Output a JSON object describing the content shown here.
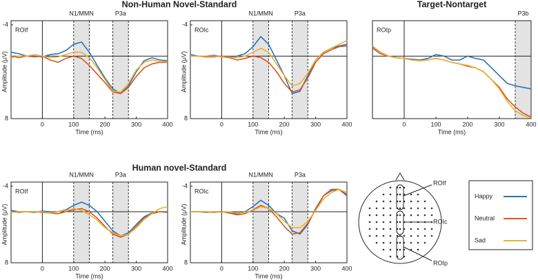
{
  "chart_data": [
    {
      "type": "line",
      "title": "Non-Human Novel-Standard",
      "panel_label": "ROIf",
      "xlabel": "Time (ms)",
      "ylabel": "Amplitude (μV)",
      "x": [
        -100,
        -75,
        -50,
        -25,
        0,
        25,
        50,
        75,
        100,
        125,
        150,
        175,
        200,
        225,
        250,
        275,
        300,
        325,
        350,
        375,
        400
      ],
      "xlim": [
        -100,
        400
      ],
      "xticks": [
        0,
        100,
        200,
        300,
        400
      ],
      "ylim": [
        -4,
        8
      ],
      "yticks": [
        -4,
        8
      ],
      "y_inverted": true,
      "windows": [
        {
          "label": "N1/MMN",
          "start": 100,
          "end": 150
        },
        {
          "label": "P3a",
          "start": 225,
          "end": 275
        }
      ],
      "series": [
        {
          "name": "Happy",
          "color": "#2a72b5",
          "values": [
            -0.5,
            -0.3,
            0,
            0,
            0.1,
            -0.2,
            -0.3,
            -0.7,
            -1.5,
            -1.8,
            -0.5,
            1.2,
            2.8,
            4.2,
            4.8,
            3.8,
            2.0,
            0.6,
            0.2,
            0.5,
            0.6
          ]
        },
        {
          "name": "Neutral",
          "color": "#d9541e",
          "values": [
            0,
            0.2,
            0,
            0.1,
            0,
            0.5,
            0.8,
            0.3,
            0,
            0.3,
            1.2,
            2.3,
            3.4,
            4.6,
            4.8,
            4.0,
            2.6,
            1.5,
            1.0,
            0.8,
            0.8
          ]
        },
        {
          "name": "Sad",
          "color": "#e8b030",
          "values": [
            0.2,
            0,
            0,
            -0.2,
            0,
            0.2,
            0.1,
            -0.2,
            -0.5,
            -0.5,
            0.2,
            1.5,
            3.0,
            4.5,
            4.6,
            3.5,
            1.8,
            0.8,
            0.5,
            0.7,
            0.7
          ]
        }
      ]
    },
    {
      "type": "line",
      "panel_label": "ROIc",
      "xlabel": "Time (ms)",
      "ylabel": "Amplitude (μV)",
      "x": [
        -100,
        -75,
        -50,
        -25,
        0,
        25,
        50,
        75,
        100,
        125,
        150,
        175,
        200,
        225,
        250,
        275,
        300,
        325,
        350,
        375,
        400
      ],
      "xlim": [
        -100,
        400
      ],
      "xticks": [
        0,
        100,
        200,
        300,
        400
      ],
      "ylim": [
        -4,
        8
      ],
      "yticks": [
        -4,
        8
      ],
      "y_inverted": true,
      "windows": [
        {
          "label": "N1/MMN",
          "start": 100,
          "end": 150
        },
        {
          "label": "P3a",
          "start": 225,
          "end": 275
        }
      ],
      "series": [
        {
          "name": "Happy",
          "color": "#2a72b5",
          "values": [
            -0.2,
            0,
            0,
            -0.1,
            0.1,
            0.2,
            0,
            -0.3,
            -1.2,
            -2.5,
            -1.5,
            0.5,
            2.5,
            4.8,
            4.5,
            2.5,
            0.5,
            -0.5,
            -1,
            -1.3,
            -1.5
          ]
        },
        {
          "name": "Neutral",
          "color": "#d9541e",
          "values": [
            0,
            0,
            0.1,
            0.1,
            0,
            0.2,
            0.5,
            0.3,
            0,
            0.2,
            0.8,
            2,
            3.5,
            4.6,
            4.3,
            2.8,
            0.8,
            -0.3,
            -0.8,
            -1.2,
            -1.3
          ]
        },
        {
          "name": "Sad",
          "color": "#e8b030",
          "values": [
            0,
            0,
            0,
            0,
            0.1,
            0.1,
            0.2,
            0,
            -0.5,
            -1,
            -0.5,
            1,
            2.5,
            3.8,
            3.5,
            2.2,
            0.5,
            -0.5,
            -1,
            -1.5,
            -2
          ]
        }
      ]
    },
    {
      "type": "line",
      "title": "Target-Nontarget",
      "panel_label": "ROIp",
      "xlabel": "Time (ms)",
      "x": [
        -100,
        -75,
        -50,
        -25,
        0,
        25,
        50,
        75,
        100,
        125,
        150,
        175,
        200,
        225,
        250,
        275,
        300,
        325,
        350,
        375,
        400
      ],
      "xlim": [
        -100,
        400
      ],
      "xticks": [
        0,
        100,
        200,
        300,
        400
      ],
      "ylim": [
        -4,
        8
      ],
      "y_inverted": true,
      "windows": [
        {
          "label": "P3b",
          "start": 350,
          "end": 400
        }
      ],
      "series": [
        {
          "name": "Happy",
          "color": "#2a72b5",
          "values": [
            -1.2,
            -0.5,
            0,
            0.2,
            0.3,
            0.4,
            0.5,
            0.3,
            -0.2,
            0,
            0.5,
            0.5,
            0,
            0.3,
            0.5,
            1.5,
            2.5,
            3.5,
            3.8,
            4,
            4.2
          ]
        },
        {
          "name": "Neutral",
          "color": "#d9541e",
          "values": [
            -1,
            -0.3,
            0,
            0.2,
            0.3,
            0.5,
            0.6,
            0.5,
            0.3,
            0.5,
            0.8,
            1,
            1.3,
            1.5,
            2,
            3,
            4,
            5.5,
            6.5,
            7.3,
            7.8
          ]
        },
        {
          "name": "Sad",
          "color": "#e8b030",
          "values": [
            -1.3,
            -0.5,
            0,
            0.2,
            0.3,
            0.5,
            0.6,
            0.5,
            0.3,
            0.5,
            0.8,
            1,
            1.2,
            1.5,
            2,
            3,
            4.2,
            5.8,
            7,
            7.6,
            7.9
          ]
        }
      ]
    },
    {
      "type": "line",
      "title": "Human novel-Standard",
      "panel_label": "ROIf",
      "xlabel": "Time (ms)",
      "ylabel": "Amplitude (μV)",
      "x": [
        -100,
        -75,
        -50,
        -25,
        0,
        25,
        50,
        75,
        100,
        125,
        150,
        175,
        200,
        225,
        250,
        275,
        300,
        325,
        350,
        375,
        400
      ],
      "xlim": [
        -100,
        400
      ],
      "xticks": [
        0,
        100,
        200,
        300,
        400
      ],
      "ylim": [
        -4,
        8
      ],
      "yticks": [
        -4,
        8
      ],
      "y_inverted": true,
      "windows": [
        {
          "label": "N1/MMN",
          "start": 100,
          "end": 150
        },
        {
          "label": "P3a",
          "start": 225,
          "end": 275
        }
      ],
      "series": [
        {
          "name": "Happy",
          "color": "#2a72b5",
          "values": [
            -0.2,
            0,
            0,
            0.1,
            -0.1,
            0,
            0,
            -0.3,
            -1,
            -1.5,
            -1,
            0,
            1.5,
            3,
            3.8,
            3.3,
            2,
            0.8,
            0.2,
            0,
            0
          ]
        },
        {
          "name": "Neutral",
          "color": "#d9541e",
          "values": [
            0,
            0.1,
            0,
            0,
            0.1,
            0.2,
            0.3,
            0,
            -0.3,
            -0.5,
            0,
            1,
            2.3,
            3.5,
            4,
            3.5,
            2.3,
            1,
            0.3,
            0,
            0.1
          ]
        },
        {
          "name": "Sad",
          "color": "#e8b030",
          "values": [
            0.1,
            0,
            0,
            0,
            0,
            0.2,
            0,
            -0.2,
            -0.5,
            -0.2,
            0.5,
            1.3,
            2.5,
            3.3,
            3.8,
            3.5,
            2.5,
            1.2,
            0.3,
            -0.5,
            -0.8
          ]
        }
      ]
    },
    {
      "type": "line",
      "panel_label": "ROIc",
      "xlabel": "Time (ms)",
      "ylabel": "Amplitude (μV)",
      "x": [
        -100,
        -75,
        -50,
        -25,
        0,
        25,
        50,
        75,
        100,
        125,
        150,
        175,
        200,
        225,
        250,
        275,
        300,
        325,
        350,
        375,
        400
      ],
      "xlim": [
        -100,
        400
      ],
      "xticks": [
        0,
        100,
        200,
        300,
        400
      ],
      "ylim": [
        -4,
        8
      ],
      "yticks": [
        -4,
        8
      ],
      "y_inverted": true,
      "windows": [
        {
          "label": "N1/MMN",
          "start": 100,
          "end": 150
        },
        {
          "label": "P3a",
          "start": 225,
          "end": 275
        }
      ],
      "series": [
        {
          "name": "Happy",
          "color": "#2a72b5",
          "values": [
            0,
            0,
            0.1,
            0,
            0,
            0.2,
            0.3,
            0,
            -0.8,
            -1.8,
            -1,
            0.3,
            1,
            3,
            3.5,
            2,
            -0.5,
            -2.5,
            -3.3,
            -3.5,
            -2.5
          ]
        },
        {
          "name": "Neutral",
          "color": "#d9541e",
          "values": [
            0,
            0,
            0,
            0.1,
            0,
            0.2,
            0.5,
            0.3,
            -0.3,
            -1,
            -0.5,
            0.8,
            2.3,
            3.5,
            3.3,
            1.8,
            -0.3,
            -2.5,
            -3.5,
            -3.5,
            -2.7
          ]
        },
        {
          "name": "Sad",
          "color": "#e8b030",
          "values": [
            0,
            0,
            0,
            0,
            0.1,
            0,
            0.2,
            0.1,
            -0.2,
            -0.8,
            -0.5,
            0.3,
            1.5,
            2.5,
            2.5,
            1.5,
            -0.2,
            -2,
            -3,
            -3.5,
            -3
          ]
        }
      ]
    }
  ],
  "head_map": {
    "rois": [
      "ROIf",
      "ROIc",
      "ROIp"
    ]
  }
}
